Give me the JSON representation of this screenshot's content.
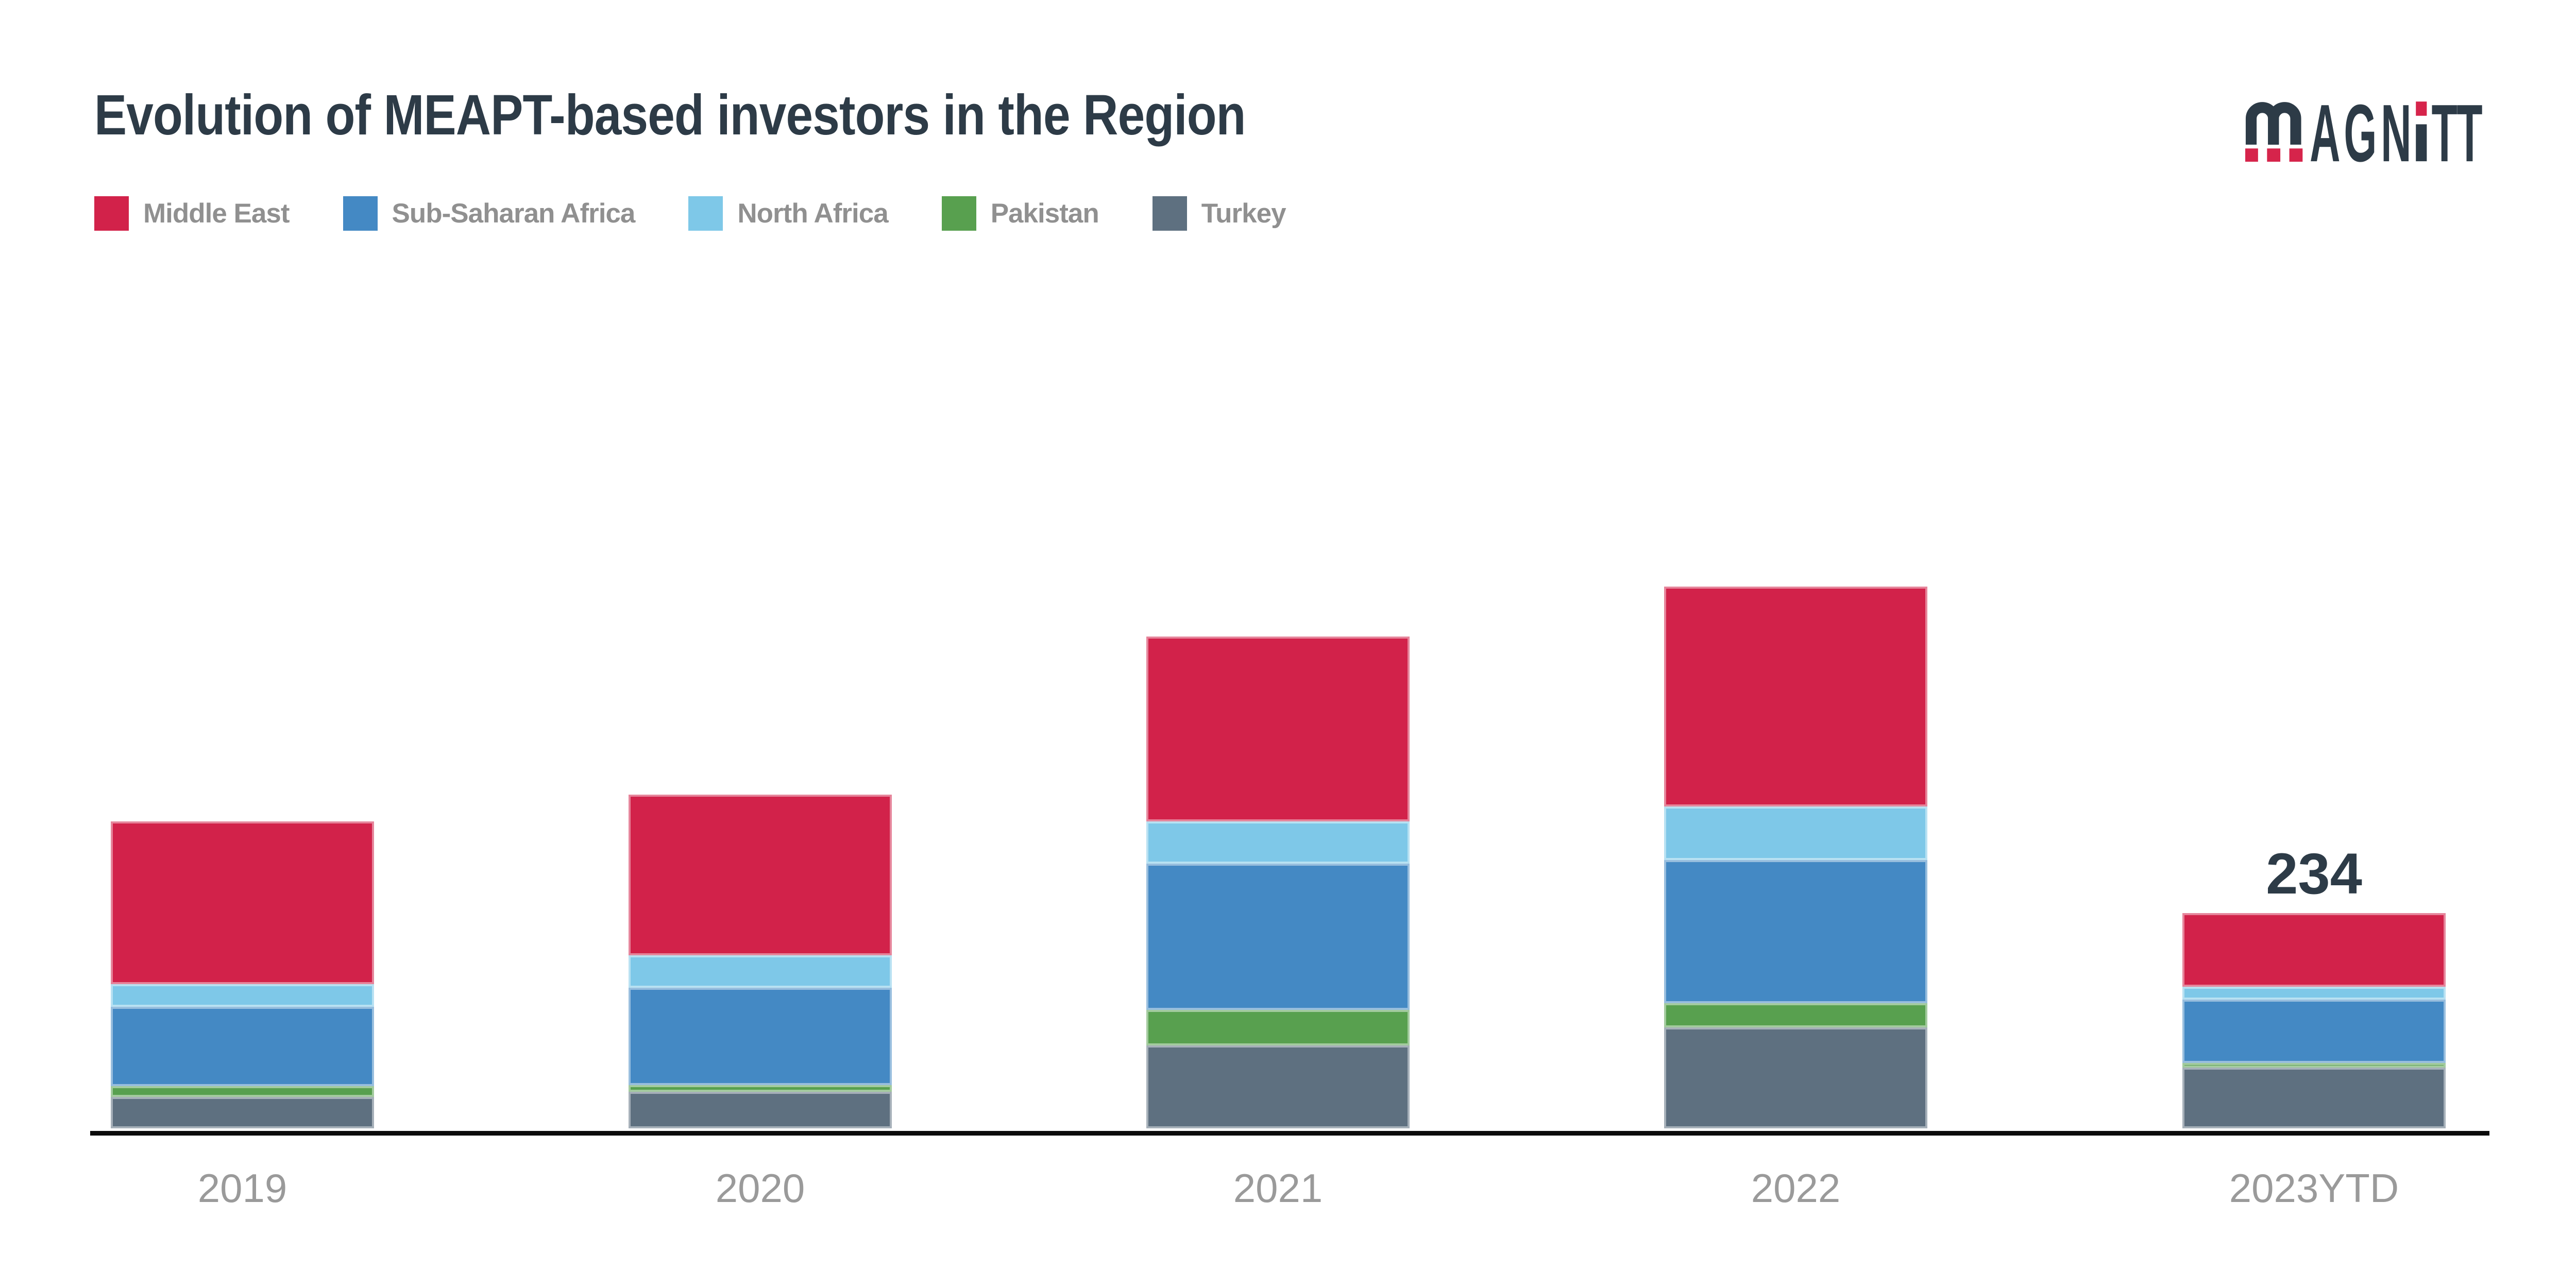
{
  "header": {
    "title": "Evolution of MEAPT-based investors in the Region",
    "logo_text": "MAGNiTT"
  },
  "legend": [
    {
      "label": "Middle East",
      "color": "#D2224A"
    },
    {
      "label": "Sub-Saharan Africa",
      "color": "#4489C4"
    },
    {
      "label": "North Africa",
      "color": "#7EC8E8"
    },
    {
      "label": "Pakistan",
      "color": "#58A04F"
    },
    {
      "label": "Turkey",
      "color": "#5E7080"
    }
  ],
  "chart_data": {
    "type": "bar",
    "stacked": true,
    "title": "Evolution of MEAPT-based investors in the Region",
    "categories": [
      "2019",
      "2020",
      "2021",
      "2022",
      "2023YTD"
    ],
    "series": [
      {
        "name": "Middle East",
        "color": "#D2224A",
        "values": [
          177,
          175,
          201,
          239,
          80
        ]
      },
      {
        "name": "Sub-Saharan Africa",
        "color": "#4489C4",
        "values": [
          86,
          106,
          159,
          156,
          69
        ]
      },
      {
        "name": "North Africa",
        "color": "#7EC8E8",
        "values": [
          25,
          35,
          46,
          58,
          14
        ]
      },
      {
        "name": "Pakistan",
        "color": "#58A04F",
        "values": [
          12,
          7,
          39,
          26,
          5
        ]
      },
      {
        "name": "Turkey",
        "color": "#5E7080",
        "values": [
          34,
          40,
          90,
          110,
          66
        ]
      }
    ],
    "stack_order_bottom_to_top": [
      "Turkey",
      "Pakistan",
      "Sub-Saharan Africa",
      "North Africa",
      "Middle East"
    ],
    "totals": [
      334,
      363,
      535,
      589,
      234
    ],
    "data_labels": {
      "2023YTD": "234"
    },
    "xlabel": "",
    "ylabel": "",
    "grid": false,
    "legend_position": "top-left",
    "ylim": [
      0,
      650
    ]
  },
  "colors": {
    "background": "#FFFFFF",
    "title": "#2D3B47",
    "axis": "#0B0B0B",
    "category_labels": "#9A9A9A",
    "legend_labels": "#909090",
    "logo_dark": "#2D3B47",
    "logo_red": "#D6244B"
  }
}
